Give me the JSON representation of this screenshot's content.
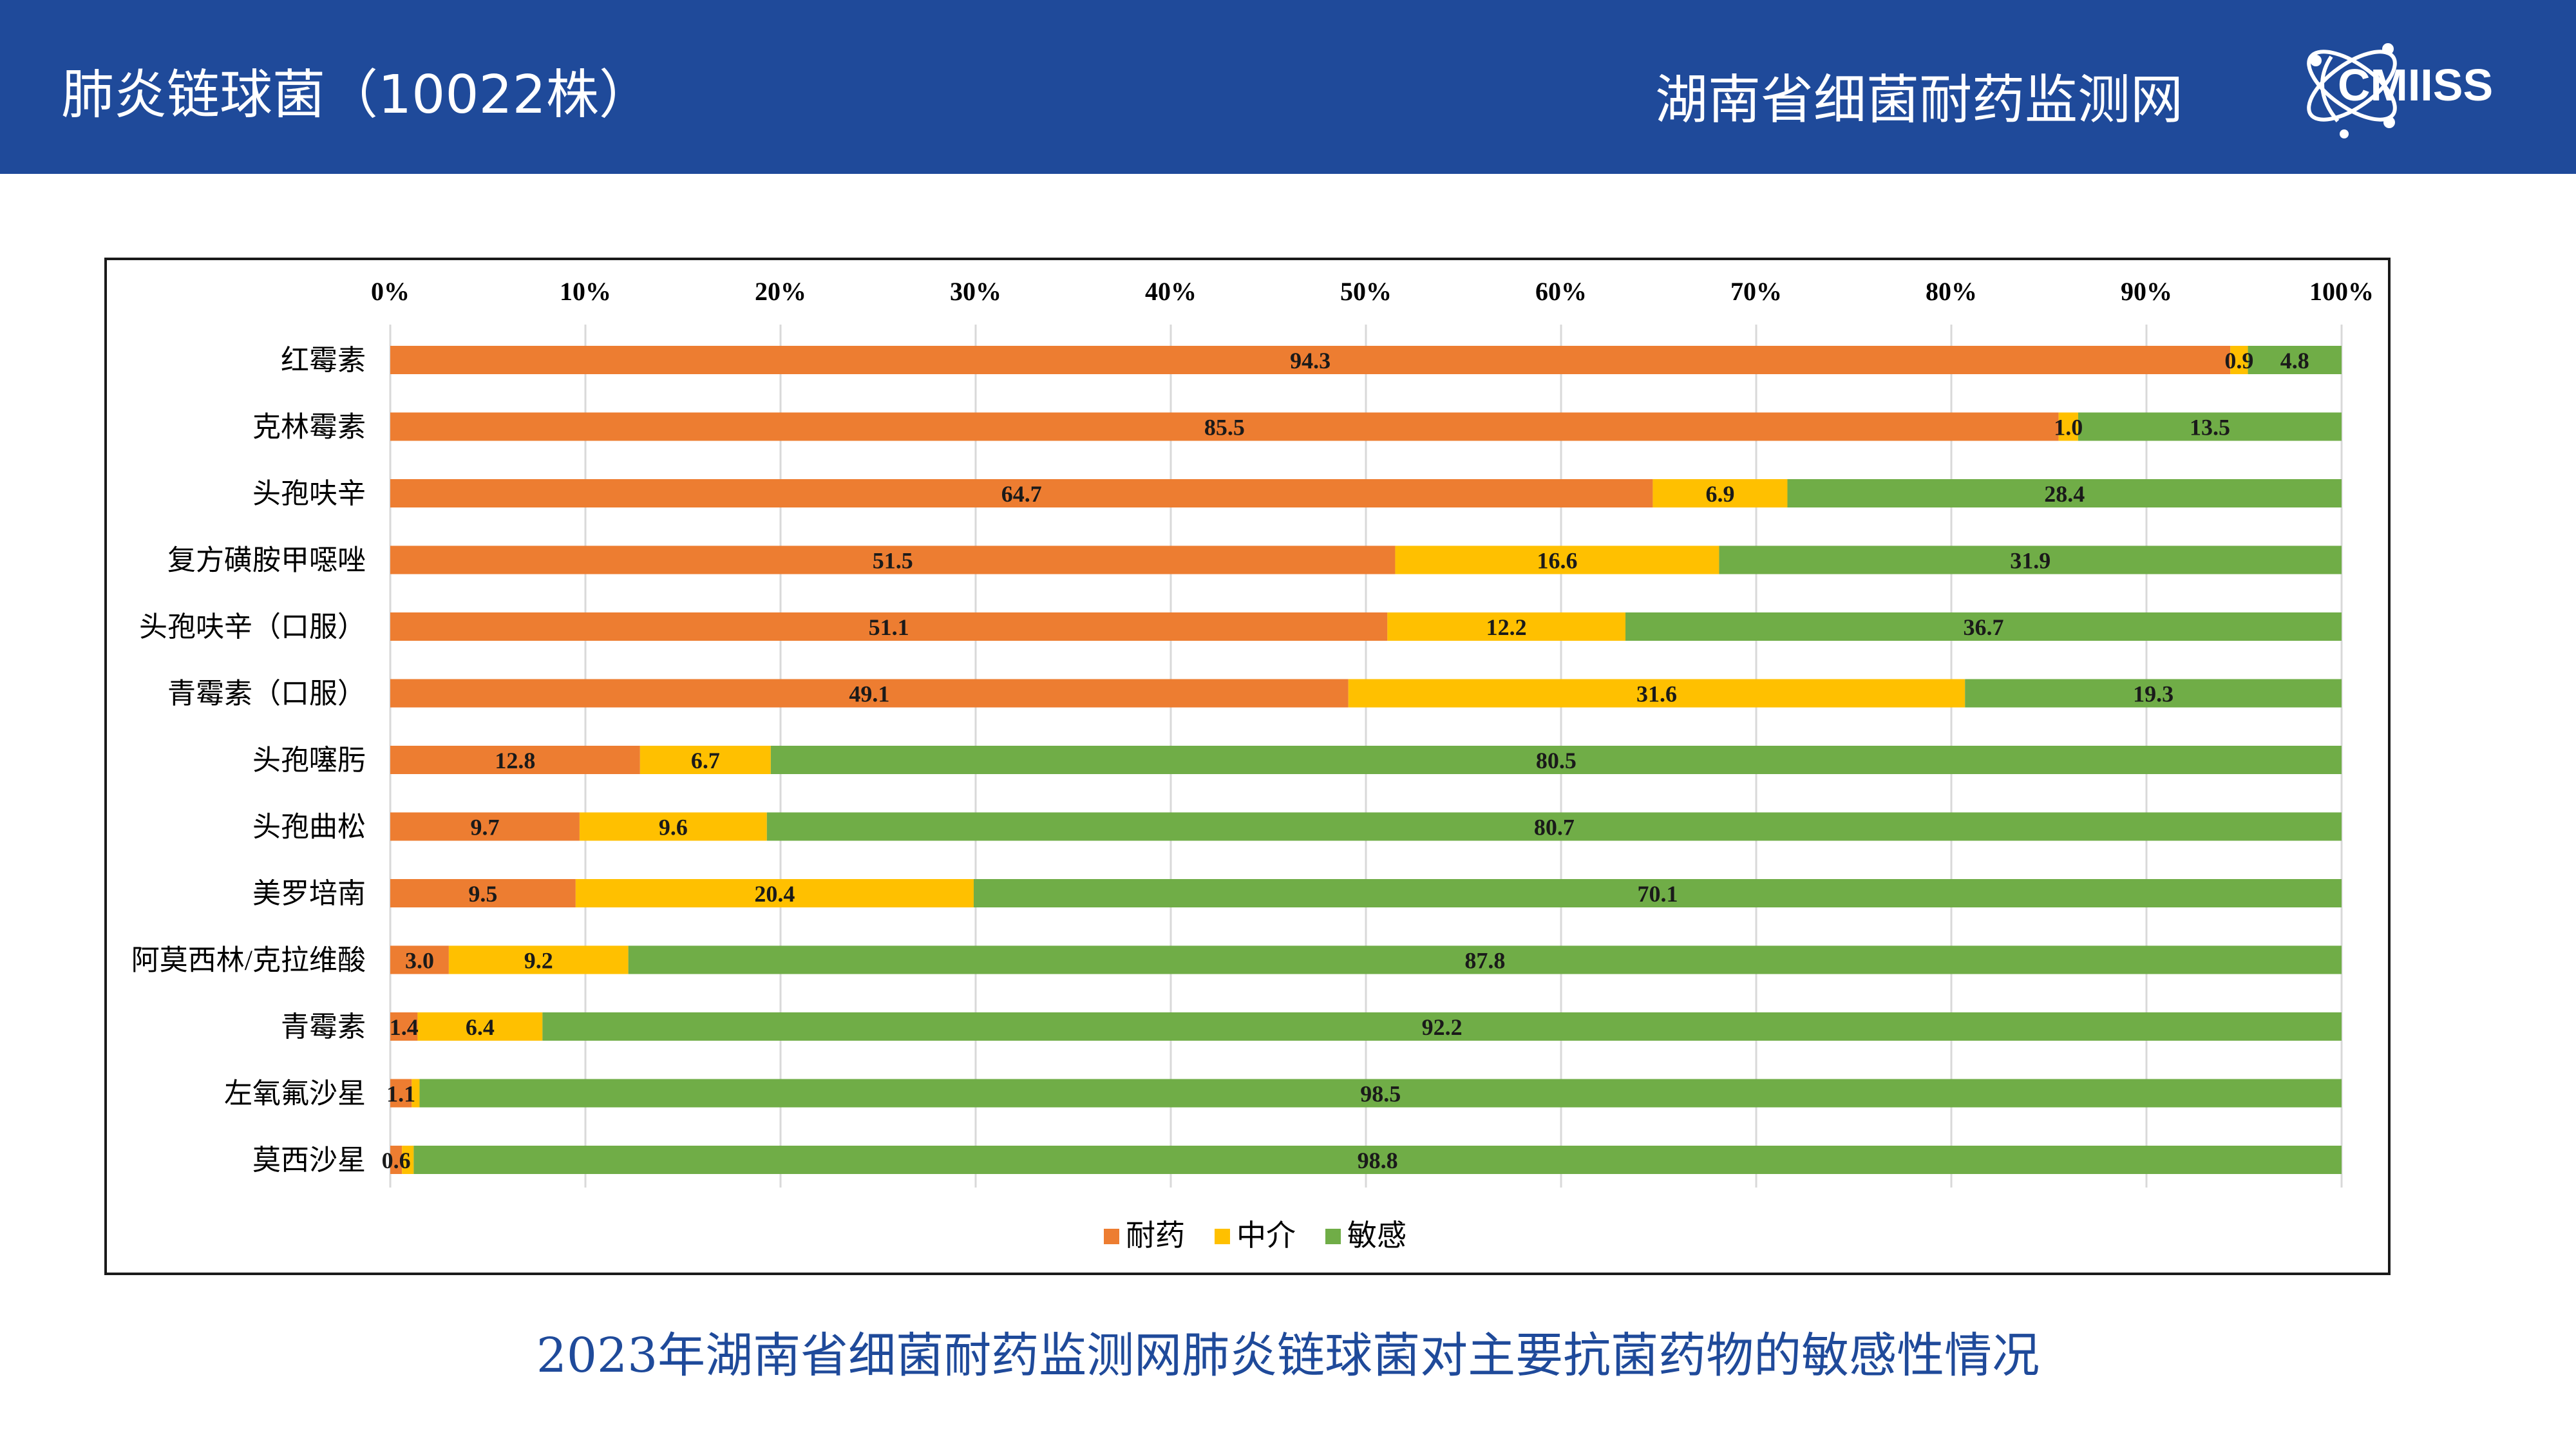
{
  "header": {
    "title": "肺炎链球菌（10022株）",
    "org": "湖南省细菌耐药监测网",
    "logo_text": "CMIISS",
    "background": "#1f4a9a"
  },
  "caption": "2023年湖南省细菌耐药监测网肺炎链球菌对主要抗菌药物的敏感性情况",
  "chart_data": {
    "type": "bar",
    "orientation": "horizontal",
    "stacked": "percent",
    "axis_position": "top",
    "x_ticks": [
      "0%",
      "10%",
      "20%",
      "30%",
      "40%",
      "50%",
      "60%",
      "70%",
      "80%",
      "90%",
      "100%"
    ],
    "xlim": [
      0,
      100
    ],
    "legend_position": "bottom",
    "categories": [
      "红霉素",
      "克林霉素",
      "头孢呋辛",
      "复方磺胺甲噁唑",
      "头孢呋辛（口服）",
      "青霉素（口服）",
      "头孢噻肟",
      "头孢曲松",
      "美罗培南",
      "阿莫西林/克拉维酸",
      "青霉素",
      "左氧氟沙星",
      "莫西沙星"
    ],
    "series": [
      {
        "name": "耐药",
        "color": "#ed7d31",
        "values": [
          94.3,
          85.5,
          64.7,
          51.5,
          51.1,
          49.1,
          12.8,
          9.7,
          9.5,
          3.0,
          1.4,
          1.1,
          0.6
        ],
        "labels": [
          "94.3",
          "85.5",
          "64.7",
          "51.5",
          "51.1",
          "49.1",
          "12.8",
          "9.7",
          "9.5",
          "3.0",
          "1.4",
          "1.1",
          "0.6"
        ]
      },
      {
        "name": "中介",
        "color": "#ffc000",
        "values": [
          0.9,
          1.0,
          6.9,
          16.6,
          12.2,
          31.6,
          6.7,
          9.6,
          20.4,
          9.2,
          6.4,
          0.4,
          0.6
        ],
        "labels": [
          "0.9",
          "1.0",
          "6.9",
          "16.6",
          "12.2",
          "31.6",
          "6.7",
          "9.6",
          "20.4",
          "9.2",
          "6.4",
          "",
          ""
        ]
      },
      {
        "name": "敏感",
        "color": "#70ad47",
        "values": [
          4.8,
          13.5,
          28.4,
          31.9,
          36.7,
          19.3,
          80.5,
          80.7,
          70.1,
          87.8,
          92.2,
          98.5,
          98.8
        ],
        "labels": [
          "4.8",
          "13.5",
          "28.4",
          "31.9",
          "36.7",
          "19.3",
          "80.5",
          "80.7",
          "70.1",
          "87.8",
          "92.2",
          "98.5",
          "98.8"
        ]
      }
    ]
  }
}
